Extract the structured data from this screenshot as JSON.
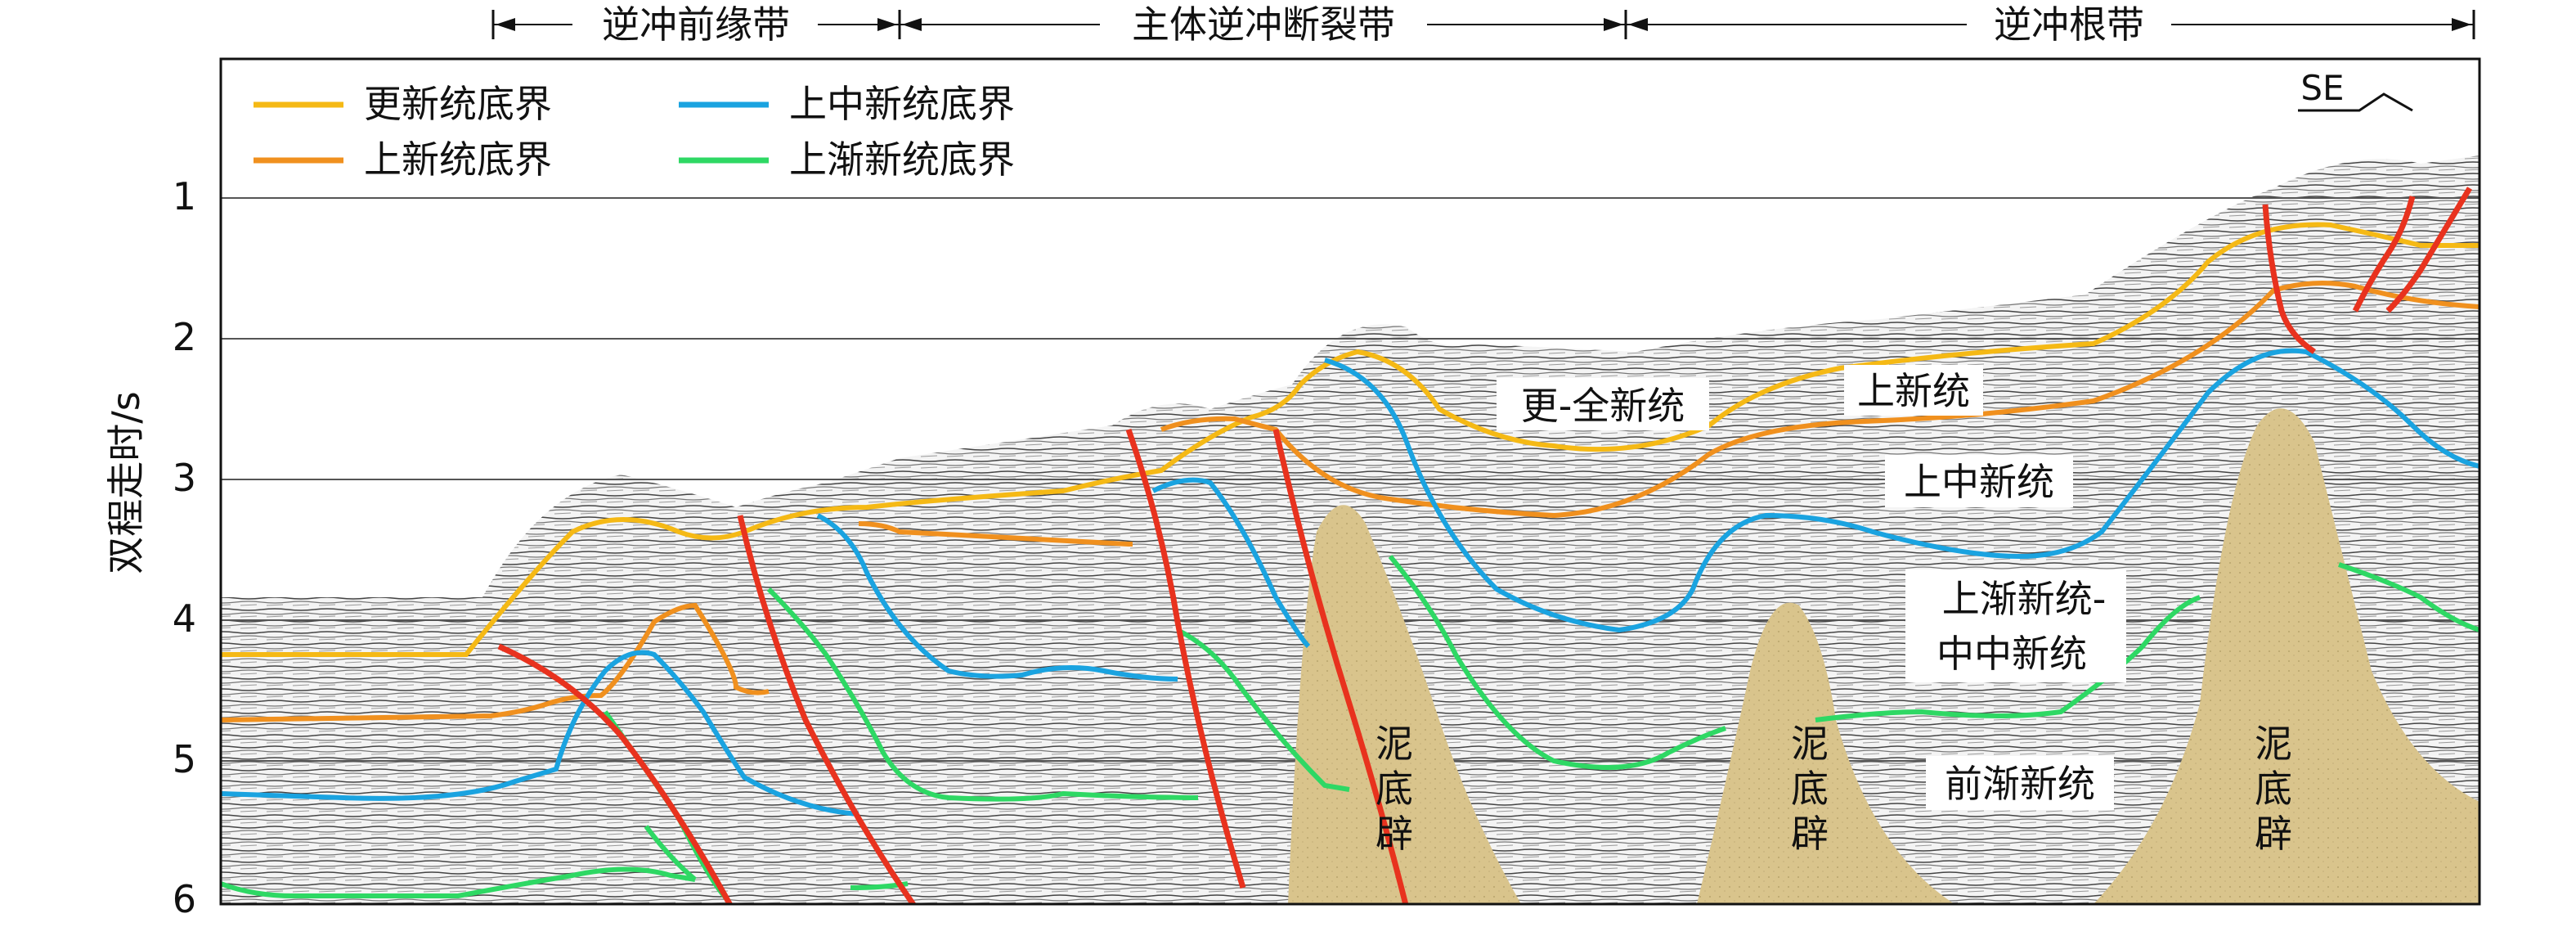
{
  "zones": [
    {
      "label": "逆冲前缘带"
    },
    {
      "label": "主体逆冲断裂带"
    },
    {
      "label": "逆冲根带"
    }
  ],
  "y_axis": {
    "label": "双程走时/s",
    "ticks": [
      "1",
      "2",
      "3",
      "4",
      "5",
      "6"
    ]
  },
  "direction": "SE",
  "legend": [
    {
      "label": "更新统底界",
      "color": "#F5B915"
    },
    {
      "label": "上新统底界",
      "color": "#F0901E"
    },
    {
      "label": "上中新统底界",
      "color": "#1AA3E0"
    },
    {
      "label": "上渐新统底界",
      "color": "#2ED864"
    }
  ],
  "fault_color": "#E8321E",
  "diapir_color": "#D9C48C",
  "units": {
    "pleistocene_holocene": "更-全新统",
    "pliocene": "上新统",
    "upper_miocene": "上中新统",
    "upper_oligocene_middle_miocene_1": "上渐新统-",
    "upper_oligocene_middle_miocene_2": "中中新统",
    "pre_oligocene": "前渐新统"
  },
  "diapirs": [
    {
      "label": [
        "泥",
        "底",
        "辟"
      ]
    },
    {
      "label": [
        "泥",
        "底",
        "辟"
      ]
    },
    {
      "label": [
        "泥",
        "底",
        "辟"
      ]
    }
  ]
}
